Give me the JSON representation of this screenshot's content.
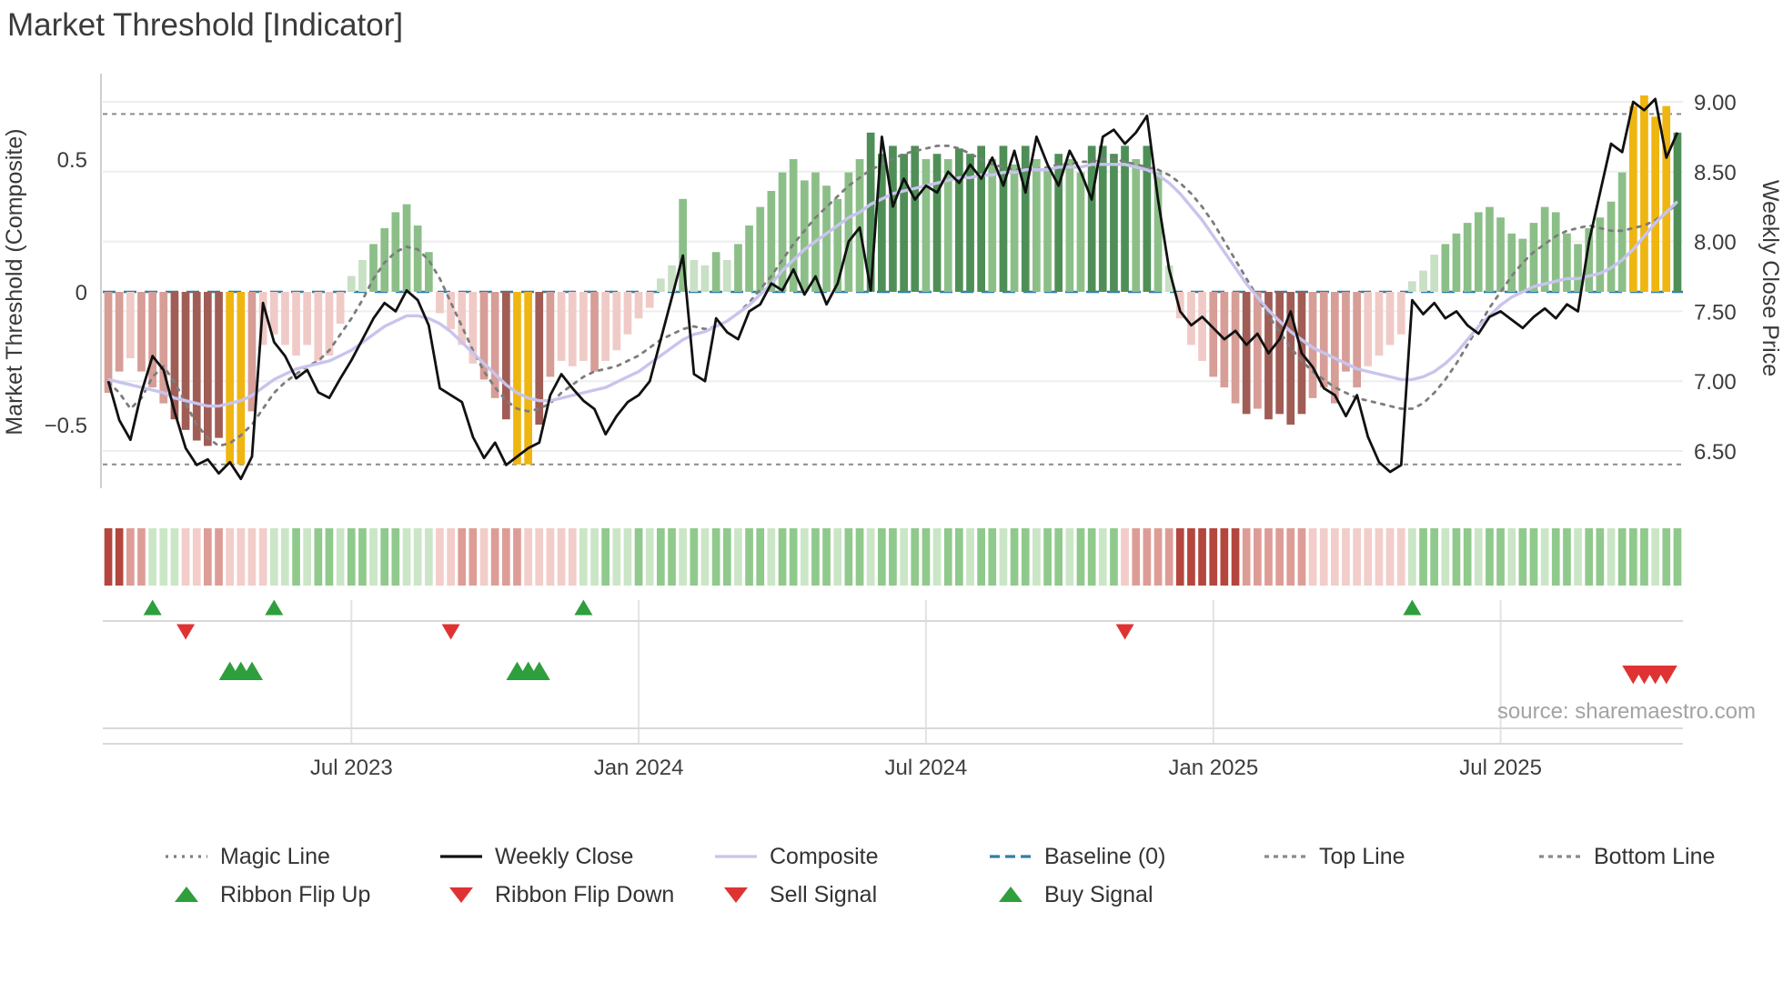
{
  "page": {
    "title": "Market Threshold [Indicator]"
  },
  "chart_data": {
    "type": "bar+line",
    "title": "Market Threshold [Indicator]",
    "source": "source: sharemaestro.com",
    "layout": {
      "legend_position": "bottom",
      "grid": "horizontal-price-gridlines",
      "panels": [
        "indicator+price",
        "ribbon",
        "signals"
      ]
    },
    "axes": {
      "left_title": "Market Threshold (Composite)",
      "right_title": "Weekly Close Price",
      "left_range": [
        -0.82,
        0.82
      ],
      "right_range": [
        6.23,
        9.2
      ],
      "left_ticks": [
        {
          "value": 0.5,
          "label": "0.5"
        },
        {
          "value": 0,
          "label": "0"
        },
        {
          "value": -0.5,
          "label": "−0.5"
        }
      ],
      "right_ticks": [
        {
          "value": 9.0,
          "label": "9.00"
        },
        {
          "value": 8.5,
          "label": "8.50"
        },
        {
          "value": 8.0,
          "label": "8.00"
        },
        {
          "value": 7.5,
          "label": "7.50"
        },
        {
          "value": 7.0,
          "label": "7.00"
        },
        {
          "value": 6.5,
          "label": "6.50"
        }
      ],
      "x_ticks": [
        {
          "index": 22,
          "label": "Jul 2023"
        },
        {
          "index": 48,
          "label": "Jan 2024"
        },
        {
          "index": 74,
          "label": "Jul 2024"
        },
        {
          "index": 100,
          "label": "Jan 2025"
        },
        {
          "index": 126,
          "label": "Jul 2025"
        }
      ]
    },
    "reference_lines": {
      "baseline": 0,
      "top_line": 0.67,
      "bottom_line": -0.65
    },
    "threshold_bars": {
      "values": [
        -0.38,
        -0.3,
        -0.25,
        -0.3,
        -0.36,
        -0.42,
        -0.48,
        -0.52,
        -0.56,
        -0.58,
        -0.55,
        -0.65,
        -0.65,
        -0.45,
        -0.2,
        -0.16,
        -0.2,
        -0.24,
        -0.2,
        -0.26,
        -0.24,
        -0.12,
        0.06,
        0.12,
        0.18,
        0.24,
        0.3,
        0.33,
        0.25,
        0.15,
        -0.08,
        -0.14,
        -0.2,
        -0.27,
        -0.33,
        -0.4,
        -0.48,
        -0.65,
        -0.65,
        -0.5,
        -0.32,
        -0.26,
        -0.28,
        -0.26,
        -0.3,
        -0.26,
        -0.22,
        -0.16,
        -0.1,
        -0.06,
        0.05,
        0.1,
        0.35,
        0.12,
        0.1,
        0.15,
        0.12,
        0.18,
        0.25,
        0.32,
        0.38,
        0.45,
        0.5,
        0.42,
        0.45,
        0.4,
        0.35,
        0.45,
        0.5,
        0.6,
        0.52,
        0.55,
        0.52,
        0.55,
        0.5,
        0.52,
        0.5,
        0.54,
        0.52,
        0.55,
        0.5,
        0.55,
        0.48,
        0.55,
        0.5,
        0.46,
        0.52,
        0.5,
        0.45,
        0.55,
        0.55,
        0.52,
        0.55,
        0.5,
        0.55,
        0.45,
        0.1,
        -0.1,
        -0.2,
        -0.26,
        -0.32,
        -0.36,
        -0.42,
        -0.46,
        -0.44,
        -0.48,
        -0.46,
        -0.5,
        -0.46,
        -0.4,
        -0.36,
        -0.42,
        -0.3,
        -0.36,
        -0.28,
        -0.24,
        -0.2,
        -0.16,
        0.04,
        0.08,
        0.14,
        0.18,
        0.22,
        0.26,
        0.3,
        0.32,
        0.28,
        0.22,
        0.2,
        0.26,
        0.32,
        0.3,
        0.22,
        0.18,
        0.24,
        0.28,
        0.34,
        0.45,
        0.7,
        0.74,
        0.66,
        0.7,
        0.6
      ],
      "gold_indices": [
        11,
        12,
        37,
        38,
        138,
        139,
        140,
        141
      ]
    },
    "weekly_close": {
      "values": [
        7.0,
        6.72,
        6.58,
        6.92,
        7.18,
        7.08,
        6.78,
        6.52,
        6.4,
        6.44,
        6.34,
        6.42,
        6.3,
        6.46,
        7.56,
        7.28,
        7.18,
        7.02,
        7.08,
        6.92,
        6.88,
        7.02,
        7.15,
        7.3,
        7.45,
        7.56,
        7.5,
        7.65,
        7.58,
        7.4,
        6.95,
        6.9,
        6.85,
        6.6,
        6.45,
        6.56,
        6.4,
        6.46,
        6.52,
        6.56,
        6.9,
        7.05,
        6.95,
        6.86,
        6.8,
        6.62,
        6.75,
        6.85,
        6.9,
        7.0,
        7.3,
        7.6,
        7.9,
        7.05,
        7.0,
        7.45,
        7.35,
        7.3,
        7.5,
        7.55,
        7.7,
        7.65,
        7.8,
        7.62,
        7.75,
        7.55,
        7.7,
        8.0,
        8.1,
        7.65,
        8.75,
        8.25,
        8.45,
        8.3,
        8.4,
        8.35,
        8.5,
        8.42,
        8.55,
        8.45,
        8.6,
        8.4,
        8.65,
        8.35,
        8.75,
        8.55,
        8.4,
        8.65,
        8.5,
        8.3,
        8.75,
        8.8,
        8.7,
        8.78,
        8.9,
        8.3,
        7.8,
        7.5,
        7.4,
        7.46,
        7.38,
        7.3,
        7.36,
        7.26,
        7.34,
        7.2,
        7.3,
        7.5,
        7.2,
        7.1,
        6.95,
        6.9,
        6.75,
        6.9,
        6.6,
        6.42,
        6.35,
        6.4,
        7.58,
        7.48,
        7.56,
        7.45,
        7.5,
        7.4,
        7.34,
        7.46,
        7.5,
        7.44,
        7.38,
        7.46,
        7.52,
        7.45,
        7.55,
        7.5,
        8.0,
        8.35,
        8.7,
        8.64,
        9.0,
        8.94,
        9.02,
        8.6,
        8.78
      ]
    },
    "composite_line": {
      "values": [
        -0.33,
        -0.34,
        -0.35,
        -0.36,
        -0.37,
        -0.38,
        -0.4,
        -0.41,
        -0.42,
        -0.43,
        -0.43,
        -0.42,
        -0.41,
        -0.39,
        -0.36,
        -0.33,
        -0.31,
        -0.29,
        -0.28,
        -0.27,
        -0.26,
        -0.24,
        -0.22,
        -0.19,
        -0.16,
        -0.13,
        -0.11,
        -0.09,
        -0.09,
        -0.1,
        -0.12,
        -0.15,
        -0.19,
        -0.23,
        -0.27,
        -0.31,
        -0.35,
        -0.38,
        -0.4,
        -0.41,
        -0.41,
        -0.4,
        -0.39,
        -0.38,
        -0.37,
        -0.36,
        -0.34,
        -0.32,
        -0.3,
        -0.27,
        -0.24,
        -0.21,
        -0.18,
        -0.16,
        -0.15,
        -0.13,
        -0.11,
        -0.08,
        -0.05,
        -0.01,
        0.03,
        0.08,
        0.12,
        0.16,
        0.19,
        0.22,
        0.25,
        0.28,
        0.3,
        0.33,
        0.35,
        0.37,
        0.38,
        0.39,
        0.4,
        0.41,
        0.42,
        0.43,
        0.43,
        0.44,
        0.44,
        0.45,
        0.45,
        0.46,
        0.46,
        0.46,
        0.47,
        0.47,
        0.47,
        0.48,
        0.48,
        0.48,
        0.48,
        0.47,
        0.46,
        0.44,
        0.41,
        0.37,
        0.32,
        0.27,
        0.21,
        0.15,
        0.09,
        0.03,
        -0.02,
        -0.07,
        -0.11,
        -0.15,
        -0.18,
        -0.21,
        -0.23,
        -0.25,
        -0.27,
        -0.29,
        -0.3,
        -0.31,
        -0.32,
        -0.33,
        -0.33,
        -0.32,
        -0.3,
        -0.27,
        -0.23,
        -0.18,
        -0.13,
        -0.09,
        -0.05,
        -0.02,
        0.0,
        0.02,
        0.03,
        0.04,
        0.05,
        0.05,
        0.06,
        0.07,
        0.09,
        0.12,
        0.16,
        0.21,
        0.26,
        0.3,
        0.34
      ]
    },
    "magic_line": {
      "values": [
        -0.34,
        -0.38,
        -0.44,
        -0.4,
        -0.32,
        -0.28,
        -0.34,
        -0.42,
        -0.5,
        -0.55,
        -0.58,
        -0.57,
        -0.54,
        -0.5,
        -0.44,
        -0.38,
        -0.34,
        -0.31,
        -0.28,
        -0.26,
        -0.22,
        -0.16,
        -0.1,
        -0.03,
        0.05,
        0.11,
        0.15,
        0.17,
        0.16,
        0.12,
        0.05,
        -0.04,
        -0.13,
        -0.22,
        -0.3,
        -0.36,
        -0.41,
        -0.44,
        -0.45,
        -0.44,
        -0.42,
        -0.38,
        -0.35,
        -0.32,
        -0.3,
        -0.29,
        -0.28,
        -0.26,
        -0.24,
        -0.21,
        -0.18,
        -0.16,
        -0.14,
        -0.13,
        -0.14,
        -0.13,
        -0.11,
        -0.08,
        -0.04,
        0.01,
        0.06,
        0.12,
        0.18,
        0.23,
        0.28,
        0.32,
        0.36,
        0.4,
        0.43,
        0.46,
        0.48,
        0.5,
        0.52,
        0.53,
        0.54,
        0.55,
        0.55,
        0.54,
        0.52,
        0.5,
        0.48,
        0.47,
        0.46,
        0.46,
        0.46,
        0.47,
        0.48,
        0.48,
        0.49,
        0.49,
        0.5,
        0.5,
        0.49,
        0.48,
        0.47,
        0.46,
        0.44,
        0.41,
        0.37,
        0.32,
        0.26,
        0.19,
        0.12,
        0.05,
        -0.02,
        -0.09,
        -0.15,
        -0.21,
        -0.26,
        -0.3,
        -0.33,
        -0.36,
        -0.38,
        -0.4,
        -0.41,
        -0.42,
        -0.43,
        -0.44,
        -0.44,
        -0.42,
        -0.38,
        -0.33,
        -0.27,
        -0.2,
        -0.13,
        -0.06,
        0.0,
        0.06,
        0.11,
        0.15,
        0.18,
        0.21,
        0.23,
        0.24,
        0.25,
        0.24,
        0.23,
        0.23,
        0.24,
        0.25,
        0.27,
        0.3,
        0.33
      ]
    },
    "ribbon": [
      "r3",
      "r3",
      "r2",
      "r2",
      "g1",
      "g1",
      "g1",
      "r1",
      "r1",
      "r2",
      "r2",
      "r1",
      "r1",
      "r1",
      "r1",
      "g1",
      "g1",
      "g2",
      "g1",
      "g2",
      "g2",
      "g1",
      "g2",
      "g2",
      "g1",
      "g2",
      "g2",
      "g1",
      "g1",
      "g1",
      "r1",
      "r1",
      "r2",
      "r2",
      "r1",
      "r2",
      "r2",
      "r2",
      "r1",
      "r1",
      "r1",
      "r1",
      "r1",
      "g1",
      "g1",
      "g2",
      "g1",
      "g1",
      "g2",
      "g1",
      "g2",
      "g2",
      "g1",
      "g2",
      "g1",
      "g2",
      "g2",
      "g1",
      "g2",
      "g2",
      "g1",
      "g2",
      "g2",
      "g1",
      "g2",
      "g2",
      "g1",
      "g2",
      "g2",
      "g1",
      "g2",
      "g2",
      "g1",
      "g2",
      "g2",
      "g1",
      "g2",
      "g2",
      "g1",
      "g2",
      "g2",
      "g1",
      "g2",
      "g2",
      "g1",
      "g2",
      "g2",
      "g1",
      "g2",
      "g2",
      "g1",
      "g2",
      "r1",
      "r2",
      "r2",
      "r2",
      "r2",
      "r3",
      "r3",
      "r3",
      "r3",
      "r3",
      "r3",
      "r2",
      "r2",
      "r2",
      "r2",
      "r2",
      "r2",
      "r1",
      "r1",
      "r1",
      "r1",
      "r1",
      "r1",
      "r1",
      "r1",
      "r1",
      "g1",
      "g2",
      "g2",
      "g1",
      "g2",
      "g2",
      "g1",
      "g2",
      "g2",
      "g1",
      "g2",
      "g2",
      "g1",
      "g2",
      "g2",
      "g1",
      "g2",
      "g2",
      "g1",
      "g2",
      "g2",
      "g2",
      "g1",
      "g2",
      "g2"
    ],
    "signals": {
      "ribbon_flip_up": [
        4,
        15,
        43,
        118
      ],
      "ribbon_flip_down": [
        7,
        31,
        92
      ],
      "buy": [
        11,
        12,
        13,
        37,
        38,
        39
      ],
      "sell": [
        138,
        139,
        140,
        141
      ]
    },
    "palette": {
      "green_light": "#c8e0c4",
      "green_mid": "#8cbf88",
      "green_dark": "#4f8f57",
      "pink_light": "#f0cac6",
      "pink_mid": "#d79d97",
      "pink_dark": "#a05d55",
      "gold": "#efb511",
      "weekly": "#111111",
      "composite": "#c8c4ed",
      "magic": "#7d7d7d",
      "baseline": "#2f7fa6",
      "guide": "#8a8a8a",
      "buy_green": "#2f9e3d",
      "sell_red": "#df3333",
      "r1": "#f2cdc9",
      "r2": "#dd9d96",
      "r3": "#b4463e",
      "g1": "#cbe6c6",
      "g2": "#90c98c"
    }
  },
  "legend": {
    "rows": [
      [
        {
          "label": "Magic Line",
          "swatch": "dotted",
          "color": "#7d7d7d"
        },
        {
          "label": "Weekly Close",
          "swatch": "solid",
          "color": "#111111"
        },
        {
          "label": "Composite",
          "swatch": "solid",
          "color": "#c8c4ed"
        },
        {
          "label": "Baseline (0)",
          "swatch": "dashed",
          "color": "#2f7fa6"
        },
        {
          "label": "Top Line",
          "swatch": "dash-small",
          "color": "#8a8a8a"
        },
        {
          "label": "Bottom Line",
          "swatch": "dash-small",
          "color": "#8a8a8a"
        }
      ],
      [
        {
          "label": "Ribbon Flip Up",
          "swatch": "triangle-up",
          "color": "#2f9e3d"
        },
        {
          "label": "Ribbon Flip Down",
          "swatch": "triangle-down",
          "color": "#df3333"
        },
        {
          "label": "Sell Signal",
          "swatch": "triangle-down",
          "color": "#df3333"
        },
        {
          "label": "Buy Signal",
          "swatch": "triangle-up",
          "color": "#2f9e3d"
        }
      ]
    ]
  }
}
